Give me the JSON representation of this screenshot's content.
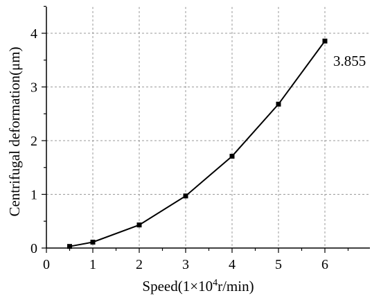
{
  "chart_data": {
    "type": "line",
    "title": "",
    "xlabel_parts": [
      "Speed(1×10",
      "4",
      "r/min)"
    ],
    "ylabel": "Centrifugal deformation(μm)",
    "xlim": [
      0,
      6.5
    ],
    "ylim": [
      0,
      4.5
    ],
    "xticks": [
      "0",
      "1",
      "2",
      "3",
      "4",
      "5",
      "6"
    ],
    "yticks": [
      "0",
      "1",
      "2",
      "3",
      "4"
    ],
    "grid": true,
    "series": [
      {
        "x": [
          0.5,
          1,
          2,
          3,
          4,
          5,
          6
        ],
        "y": [
          0.03,
          0.11,
          0.43,
          0.97,
          1.71,
          2.68,
          3.855
        ],
        "color": "#000000",
        "marker": "square"
      }
    ],
    "annotations": [
      {
        "text": "3.855",
        "x": 6,
        "y": 3.855
      }
    ]
  }
}
